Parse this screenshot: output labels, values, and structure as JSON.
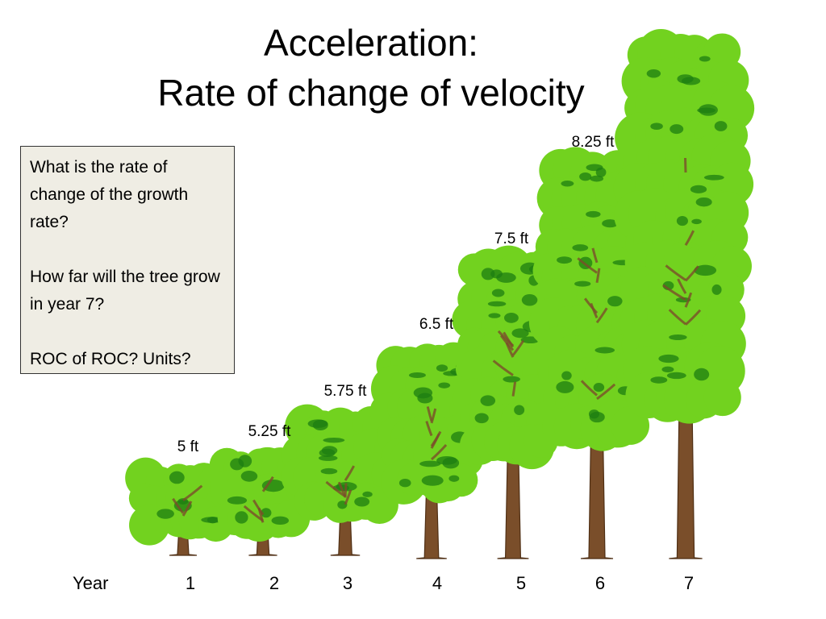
{
  "title": {
    "line1": "Acceleration:",
    "line2": "Rate of change of velocity"
  },
  "question_box": {
    "q1": "What is the rate of change of the growth rate?",
    "q2": "How far will the tree grow in year 7?",
    "q3": "ROC of ROC?  Units?"
  },
  "axis": {
    "label": "Year"
  },
  "trees": [
    {
      "year": "1",
      "height_label": "5 ft"
    },
    {
      "year": "2",
      "height_label": "5.25 ft"
    },
    {
      "year": "3",
      "height_label": "5.75 ft"
    },
    {
      "year": "4",
      "height_label": "6.5 ft"
    },
    {
      "year": "5",
      "height_label": "7.5 ft"
    },
    {
      "year": "6",
      "height_label": "8.25 ft"
    },
    {
      "year": "7",
      "height_label": ""
    }
  ],
  "colors": {
    "foliage_light": "#72d21f",
    "foliage_dark": "#1e7d12",
    "trunk": "#7a4e2a",
    "trunk_dark": "#4f2f14",
    "box_fill": "#efede4"
  }
}
